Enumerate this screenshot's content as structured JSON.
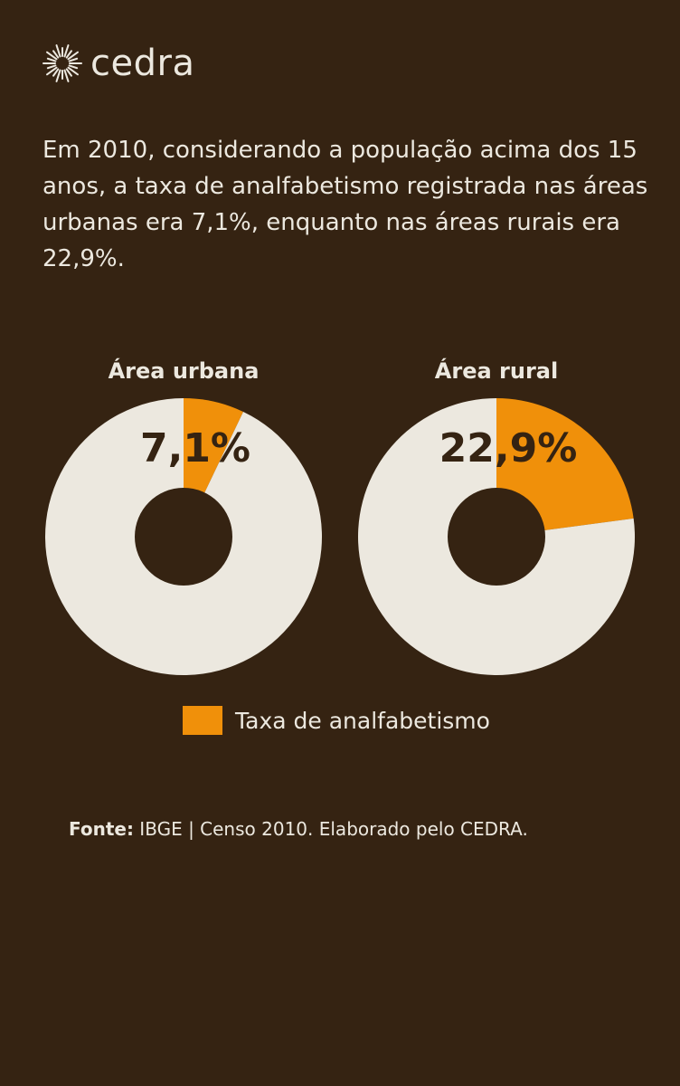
{
  "brand": {
    "name": "cedra",
    "logo_icon": "sun-burst-icon"
  },
  "intro_text": "Em 2010, considerando a população acima dos 15 anos, a taxa de analfabetismo registrada nas áreas urbanas era 7,1%, enquanto nas áreas rurais era 22,9%.",
  "colors": {
    "background": "#352312",
    "highlight": "#f0900a",
    "remainder": "#ece8df",
    "label_dark": "#352312"
  },
  "chart_data": [
    {
      "type": "pie",
      "title": "Área urbana",
      "slices": [
        {
          "label": "Taxa de analfabetismo",
          "value": 7.1
        },
        {
          "label": "",
          "value": 92.9
        }
      ],
      "data_label": "7,1%"
    },
    {
      "type": "pie",
      "title": "Área rural",
      "slices": [
        {
          "label": "Taxa de analfabetismo",
          "value": 22.9
        },
        {
          "label": "",
          "value": 77.1
        }
      ],
      "data_label": "22,9%"
    }
  ],
  "legend": {
    "label": "Taxa de analfabetismo"
  },
  "source": {
    "prefix": "Fonte:",
    "text": " IBGE | Censo 2010. Elaborado pelo CEDRA."
  }
}
